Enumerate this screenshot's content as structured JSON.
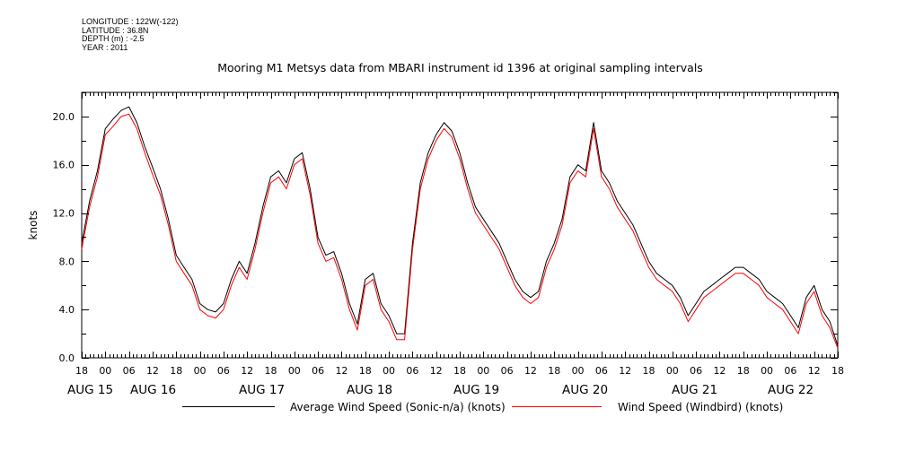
{
  "header": {
    "longitude": "LONGITUDE : 122W(-122)",
    "latitude": "LATITUDE : 36.8N",
    "depth": "DEPTH (m) : -2.5",
    "year": "YEAR : 2011"
  },
  "chart_data": {
    "type": "line",
    "title": "Mooring M1 Metsys data from MBARI instrument id 1396 at original sampling intervals",
    "ylabel": "knots",
    "xlabel": "",
    "ylim": [
      0,
      22.0
    ],
    "yticks": [
      "0.0",
      "4.0",
      "8.0",
      "12.0",
      "16.0",
      "20.0"
    ],
    "x_hour_ticks": [
      "18",
      "00",
      "06",
      "12",
      "18",
      "00",
      "06",
      "12",
      "18",
      "00",
      "06",
      "12",
      "18",
      "00",
      "06",
      "12",
      "18",
      "00",
      "06",
      "12",
      "18",
      "00",
      "06",
      "12",
      "18",
      "00",
      "06",
      "12",
      "18",
      "00",
      "06",
      "12",
      "18"
    ],
    "x_day_labels": [
      "AUG 15",
      "AUG 16",
      "AUG 17",
      "AUG 18",
      "AUG 19",
      "AUG 20",
      "AUG 21",
      "AUG 22"
    ],
    "x_unit": "hours since AUG 14 18:00",
    "xlim": [
      0,
      192
    ],
    "grid": false,
    "legend_position": "bottom",
    "series": [
      {
        "name": "Average Wind Speed (Sonic-n/a) (knots)",
        "color": "#000000",
        "x": [
          0,
          2,
          4,
          6,
          8,
          10,
          12,
          14,
          16,
          18,
          20,
          22,
          24,
          26,
          28,
          30,
          32,
          34,
          36,
          38,
          40,
          42,
          44,
          46,
          48,
          50,
          52,
          54,
          56,
          58,
          60,
          62,
          64,
          66,
          68,
          70,
          72,
          74,
          76,
          78,
          80,
          82,
          84,
          86,
          88,
          90,
          92,
          94,
          96,
          98,
          100,
          102,
          104,
          106,
          108,
          110,
          112,
          114,
          116,
          118,
          120,
          122,
          124,
          126,
          128,
          130,
          132,
          134,
          136,
          138,
          140,
          142,
          144,
          146,
          148,
          150,
          152,
          154,
          156,
          158,
          160,
          162,
          164,
          166,
          168,
          170,
          172,
          174,
          176,
          178,
          180,
          182,
          184,
          186,
          188,
          190,
          192
        ],
        "values": [
          9.5,
          13.0,
          15.5,
          19.0,
          19.8,
          20.5,
          20.8,
          19.5,
          17.5,
          15.8,
          14.0,
          11.5,
          8.5,
          7.5,
          6.5,
          4.5,
          4.0,
          3.8,
          4.5,
          6.5,
          8.0,
          7.0,
          9.5,
          12.5,
          15.0,
          15.5,
          14.5,
          16.5,
          17.0,
          14.0,
          10.0,
          8.5,
          8.8,
          7.0,
          4.5,
          2.8,
          6.5,
          7.0,
          4.5,
          3.5,
          2.0,
          2.0,
          9.5,
          14.5,
          17.0,
          18.5,
          19.5,
          18.8,
          17.0,
          14.5,
          12.5,
          11.5,
          10.5,
          9.5,
          8.0,
          6.5,
          5.5,
          5.0,
          5.5,
          8.0,
          9.5,
          11.5,
          15.0,
          16.0,
          15.5,
          19.5,
          15.5,
          14.5,
          13.0,
          12.0,
          11.0,
          9.5,
          8.0,
          7.0,
          6.5,
          6.0,
          5.0,
          3.5,
          4.5,
          5.5,
          6.0,
          6.5,
          7.0,
          7.5,
          7.5,
          7.0,
          6.5,
          5.5,
          5.0,
          4.5,
          3.5,
          2.5,
          5.0,
          6.0,
          4.0,
          3.0,
          1.0
        ]
      },
      {
        "name": "Wind Speed (Windbird) (knots)",
        "color": "#ff0000",
        "x": [
          0,
          2,
          4,
          6,
          8,
          10,
          12,
          14,
          16,
          18,
          20,
          22,
          24,
          26,
          28,
          30,
          32,
          34,
          36,
          38,
          40,
          42,
          44,
          46,
          48,
          50,
          52,
          54,
          56,
          58,
          60,
          62,
          64,
          66,
          68,
          70,
          72,
          74,
          76,
          78,
          80,
          82,
          84,
          86,
          88,
          90,
          92,
          94,
          96,
          98,
          100,
          102,
          104,
          106,
          108,
          110,
          112,
          114,
          116,
          118,
          120,
          122,
          124,
          126,
          128,
          130,
          132,
          134,
          136,
          138,
          140,
          142,
          144,
          146,
          148,
          150,
          152,
          154,
          156,
          158,
          160,
          162,
          164,
          166,
          168,
          170,
          172,
          174,
          176,
          178,
          180,
          182,
          184,
          186,
          188,
          190,
          192
        ],
        "values": [
          9.0,
          12.5,
          15.0,
          18.5,
          19.2,
          20.0,
          20.2,
          19.0,
          17.0,
          15.2,
          13.5,
          11.0,
          8.0,
          7.0,
          6.0,
          4.0,
          3.5,
          3.3,
          4.0,
          6.0,
          7.5,
          6.5,
          9.0,
          12.0,
          14.5,
          15.0,
          14.0,
          16.0,
          16.5,
          13.5,
          9.5,
          8.0,
          8.3,
          6.5,
          4.0,
          2.3,
          6.0,
          6.5,
          4.0,
          3.0,
          1.5,
          1.5,
          9.0,
          14.0,
          16.5,
          18.0,
          19.0,
          18.3,
          16.5,
          14.0,
          12.0,
          11.0,
          10.0,
          9.0,
          7.5,
          6.0,
          5.0,
          4.5,
          5.0,
          7.5,
          9.0,
          11.0,
          14.5,
          15.5,
          15.0,
          19.0,
          15.0,
          14.0,
          12.5,
          11.5,
          10.5,
          9.0,
          7.5,
          6.5,
          6.0,
          5.5,
          4.5,
          3.0,
          4.0,
          5.0,
          5.5,
          6.0,
          6.5,
          7.0,
          7.0,
          6.5,
          6.0,
          5.0,
          4.5,
          4.0,
          3.0,
          2.0,
          4.5,
          5.5,
          3.5,
          2.5,
          0.8
        ]
      }
    ]
  }
}
